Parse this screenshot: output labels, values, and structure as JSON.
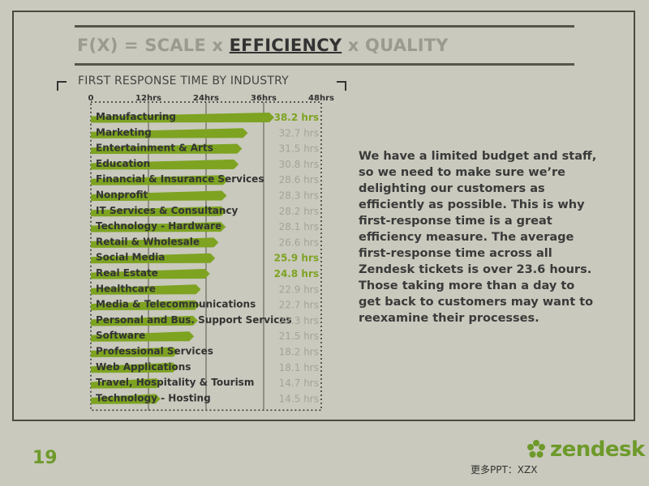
{
  "slide": {
    "title_prefix": "F(X) = SCALE x ",
    "title_accent": "EFFICIENCY",
    "title_suffix": " x QUALITY",
    "chart_heading": "FIRST RESPONSE TIME BY INDUSTRY",
    "body_text": "We have a limited budget and staff,\nso we need to make sure we’re\ndelighting our customers as\nefficiently as possible. This is why\nfirst-response time is a great\nefficiency measure. The average\nfirst-response time across all\nZendesk tickets is over 23.6 hours.\nThose taking more than a day to\nget back to customers may want to\nreexamine their processes.",
    "page_number": "19",
    "logo_text": "zendesk",
    "footer_note": "更多PPT：XZX"
  },
  "colors": {
    "bar": "#7da321",
    "value_highlight": "#7da321",
    "value_normal": "#a3a397",
    "gridline": "#555549"
  },
  "chart_data": {
    "type": "bar",
    "orientation": "horizontal",
    "title": "FIRST RESPONSE TIME BY INDUSTRY",
    "xlim": [
      0,
      48
    ],
    "x_ticks": [
      "0",
      "12hrs",
      "24hrs",
      "36hrs",
      "48hrs"
    ],
    "grid": true,
    "categories": [
      "Manufacturing",
      "Marketing",
      "Entertainment & Arts",
      "Education",
      "Financial & Insurance Services",
      "Nonprofit",
      "IT Services & Consultancy",
      "Technology - Hardware",
      "Retail & Wholesale",
      "Social Media",
      "Real Estate",
      "Healthcare",
      "Media & Telecommunications",
      "Personal and Bus. Support Services",
      "Software",
      "Professional Services",
      "Web Applications",
      "Travel, Hospitality & Tourism",
      "Technology - Hosting"
    ],
    "values": [
      38.2,
      32.7,
      31.5,
      30.8,
      28.6,
      28.3,
      28.2,
      28.1,
      26.6,
      25.9,
      24.8,
      22.9,
      22.7,
      22.3,
      21.5,
      18.2,
      18.1,
      14.7,
      14.5
    ],
    "value_labels": [
      "38.2 hrs",
      "32.7 hrs",
      "31.5 hrs",
      "30.8 hrs",
      "28.6 hrs",
      "28.3 hrs",
      "28.2 hrs",
      "28.1 hrs",
      "26.6 hrs",
      "25.9 hrs",
      "24.8 hrs",
      "22.9 hrs",
      "22.7 hrs",
      "22.3 hrs",
      "21.5 hrs",
      "18.2 hrs",
      "18.1 hrs",
      "14.7 hrs",
      "14.5 hrs"
    ],
    "highlighted": [
      "Manufacturing",
      "Social Media",
      "Real Estate"
    ]
  }
}
